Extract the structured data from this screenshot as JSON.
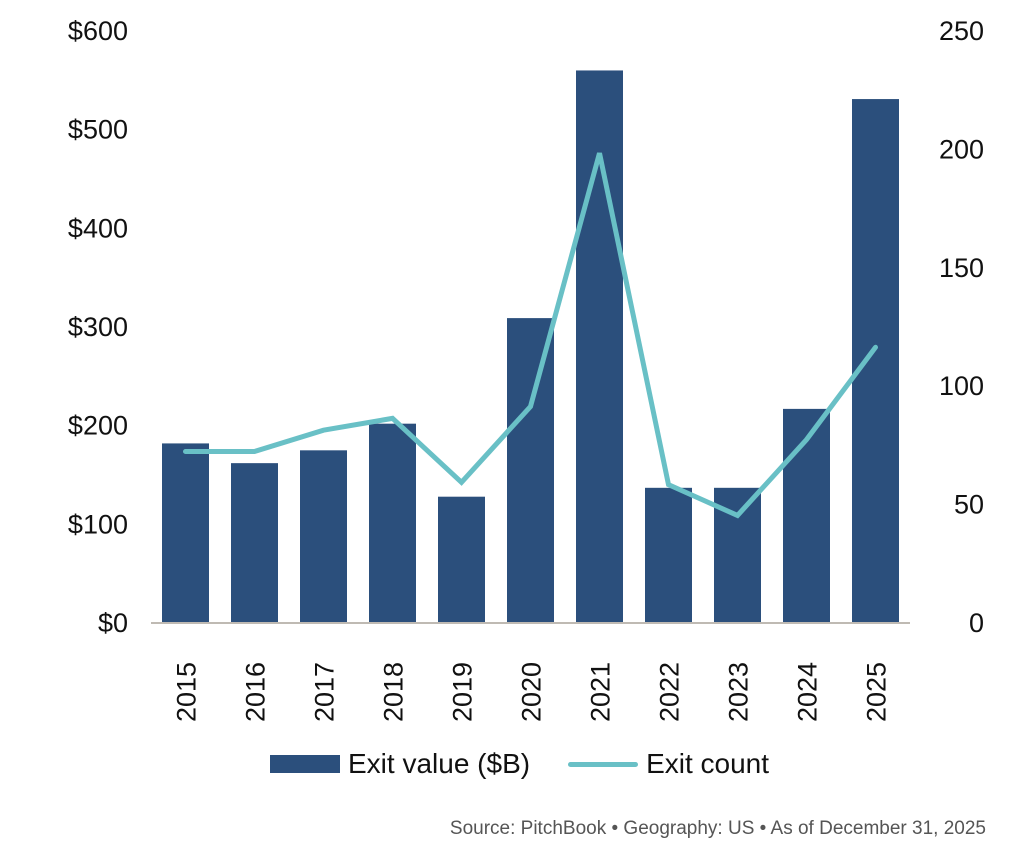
{
  "chart_data": {
    "type": "bar+line",
    "categories": [
      "2015",
      "2016",
      "2017",
      "2018",
      "2019",
      "2020",
      "2021",
      "2022",
      "2023",
      "2024",
      "2025"
    ],
    "series": [
      {
        "name": "Exit value ($B)",
        "type": "bar",
        "axis": "left",
        "color": "#2b4f7c",
        "values": [
          181,
          161,
          174,
          201,
          127,
          308,
          559,
          136,
          136,
          216,
          530
        ]
      },
      {
        "name": "Exit count",
        "type": "line",
        "axis": "right",
        "color": "#69c0c6",
        "values": [
          72,
          72,
          81,
          86,
          59,
          91,
          198,
          58,
          45,
          77,
          116
        ]
      }
    ],
    "left_axis": {
      "ticks": [
        "$0",
        "$100",
        "$200",
        "$300",
        "$400",
        "$500",
        "$600"
      ],
      "range": [
        0,
        600
      ]
    },
    "right_axis": {
      "ticks": [
        "0",
        "50",
        "100",
        "150",
        "200",
        "250"
      ],
      "range": [
        0,
        250
      ]
    },
    "legend_position": "bottom",
    "grid": false
  },
  "legend": {
    "bar_label": "Exit value ($B)",
    "line_label": "Exit count"
  },
  "source": "Source: PitchBook  •  Geography: US  •  As of December 31, 2025"
}
